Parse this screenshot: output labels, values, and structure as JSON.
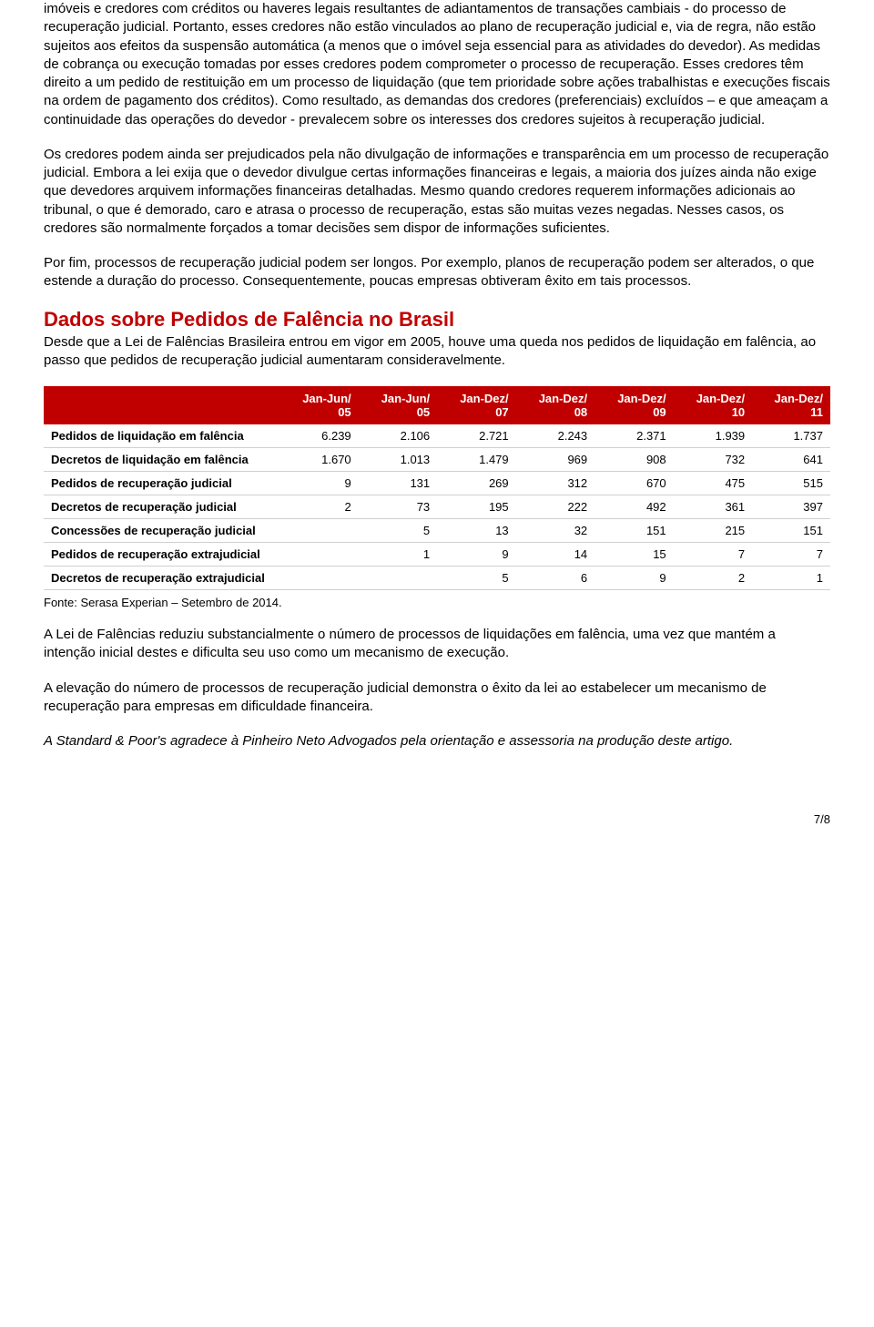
{
  "paragraphs": {
    "p1": "imóveis e credores com créditos ou haveres legais resultantes de adiantamentos de transações cambiais - do processo de recuperação judicial. Portanto, esses credores não estão vinculados ao plano de recuperação judicial e, via de regra, não estão sujeitos aos efeitos da suspensão automática (a menos que o imóvel seja essencial para as atividades do devedor). As medidas de cobrança ou execução tomadas por esses credores podem comprometer o processo de recuperação. Esses credores têm direito a um pedido de restituição em um processo de liquidação (que tem prioridade sobre ações trabalhistas e execuções fiscais na ordem de pagamento dos créditos). Como resultado, as demandas dos credores (preferenciais) excluídos – e que ameaçam a continuidade das operações do devedor - prevalecem sobre os interesses dos credores sujeitos à recuperação judicial.",
    "p2": "Os credores podem ainda ser prejudicados pela não divulgação de informações e transparência em um processo de recuperação judicial. Embora a lei exija que o devedor divulgue certas informações financeiras e legais, a maioria dos juízes ainda não exige que devedores arquivem informações financeiras detalhadas. Mesmo quando credores requerem informações adicionais ao tribunal, o que é demorado, caro e atrasa o processo de recuperação, estas são muitas vezes negadas. Nesses casos, os credores são normalmente forçados a tomar decisões sem dispor de informações suficientes.",
    "p3": "Por fim, processos de recuperação judicial podem ser longos. Por exemplo, planos de recuperação podem ser alterados, o que estende a duração do processo. Consequentemente, poucas empresas obtiveram êxito em tais processos.",
    "p4": "Desde que a Lei de Falências Brasileira entrou em vigor em 2005, houve uma queda nos pedidos de liquidação em falência, ao passo que pedidos de recuperação judicial aumentaram consideravelmente.",
    "p5": "A Lei de Falências reduziu substancialmente o número de processos de liquidações em falência, uma vez que mantém a intenção inicial destes e dificulta seu uso como um mecanismo de execução.",
    "p6": "A elevação do número de processos de recuperação judicial demonstra o êxito da lei ao estabelecer um mecanismo de recuperação para empresas em dificuldade financeira.",
    "p7": "A Standard & Poor's agradece à Pinheiro Neto Advogados pela orientação e assessoria na produção deste artigo."
  },
  "section_title": "Dados sobre Pedidos de Falência no Brasil",
  "table": {
    "headers": [
      "",
      "Jan-Jun/ 05",
      "Jan-Jun/ 05",
      "Jan-Dez/ 07",
      "Jan-Dez/ 08",
      "Jan-Dez/ 09",
      "Jan-Dez/ 10",
      "Jan-Dez/ 11"
    ],
    "rows": [
      [
        "Pedidos de liquidação em falência",
        "6.239",
        "2.106",
        "2.721",
        "2.243",
        "2.371",
        "1.939",
        "1.737"
      ],
      [
        "Decretos de liquidação em falência",
        "1.670",
        "1.013",
        "1.479",
        "969",
        "908",
        "732",
        "641"
      ],
      [
        "Pedidos de recuperação judicial",
        "9",
        "131",
        "269",
        "312",
        "670",
        "475",
        "515"
      ],
      [
        "Decretos de recuperação judicial",
        "2",
        "73",
        "195",
        "222",
        "492",
        "361",
        "397"
      ],
      [
        "Concessões de recuperação judicial",
        "",
        "5",
        "13",
        "32",
        "151",
        "215",
        "151"
      ],
      [
        "Pedidos de recuperação extrajudicial",
        "",
        "1",
        "9",
        "14",
        "15",
        "7",
        "7"
      ],
      [
        "Decretos de recuperação extrajudicial",
        "",
        "",
        "5",
        "6",
        "9",
        "2",
        "1"
      ]
    ],
    "source": "Fonte: Serasa Experian – Setembro de 2014.",
    "header_bg": "#c00000",
    "header_color": "#ffffff",
    "border_color": "#d0d0d0"
  },
  "page_number": "7/8"
}
